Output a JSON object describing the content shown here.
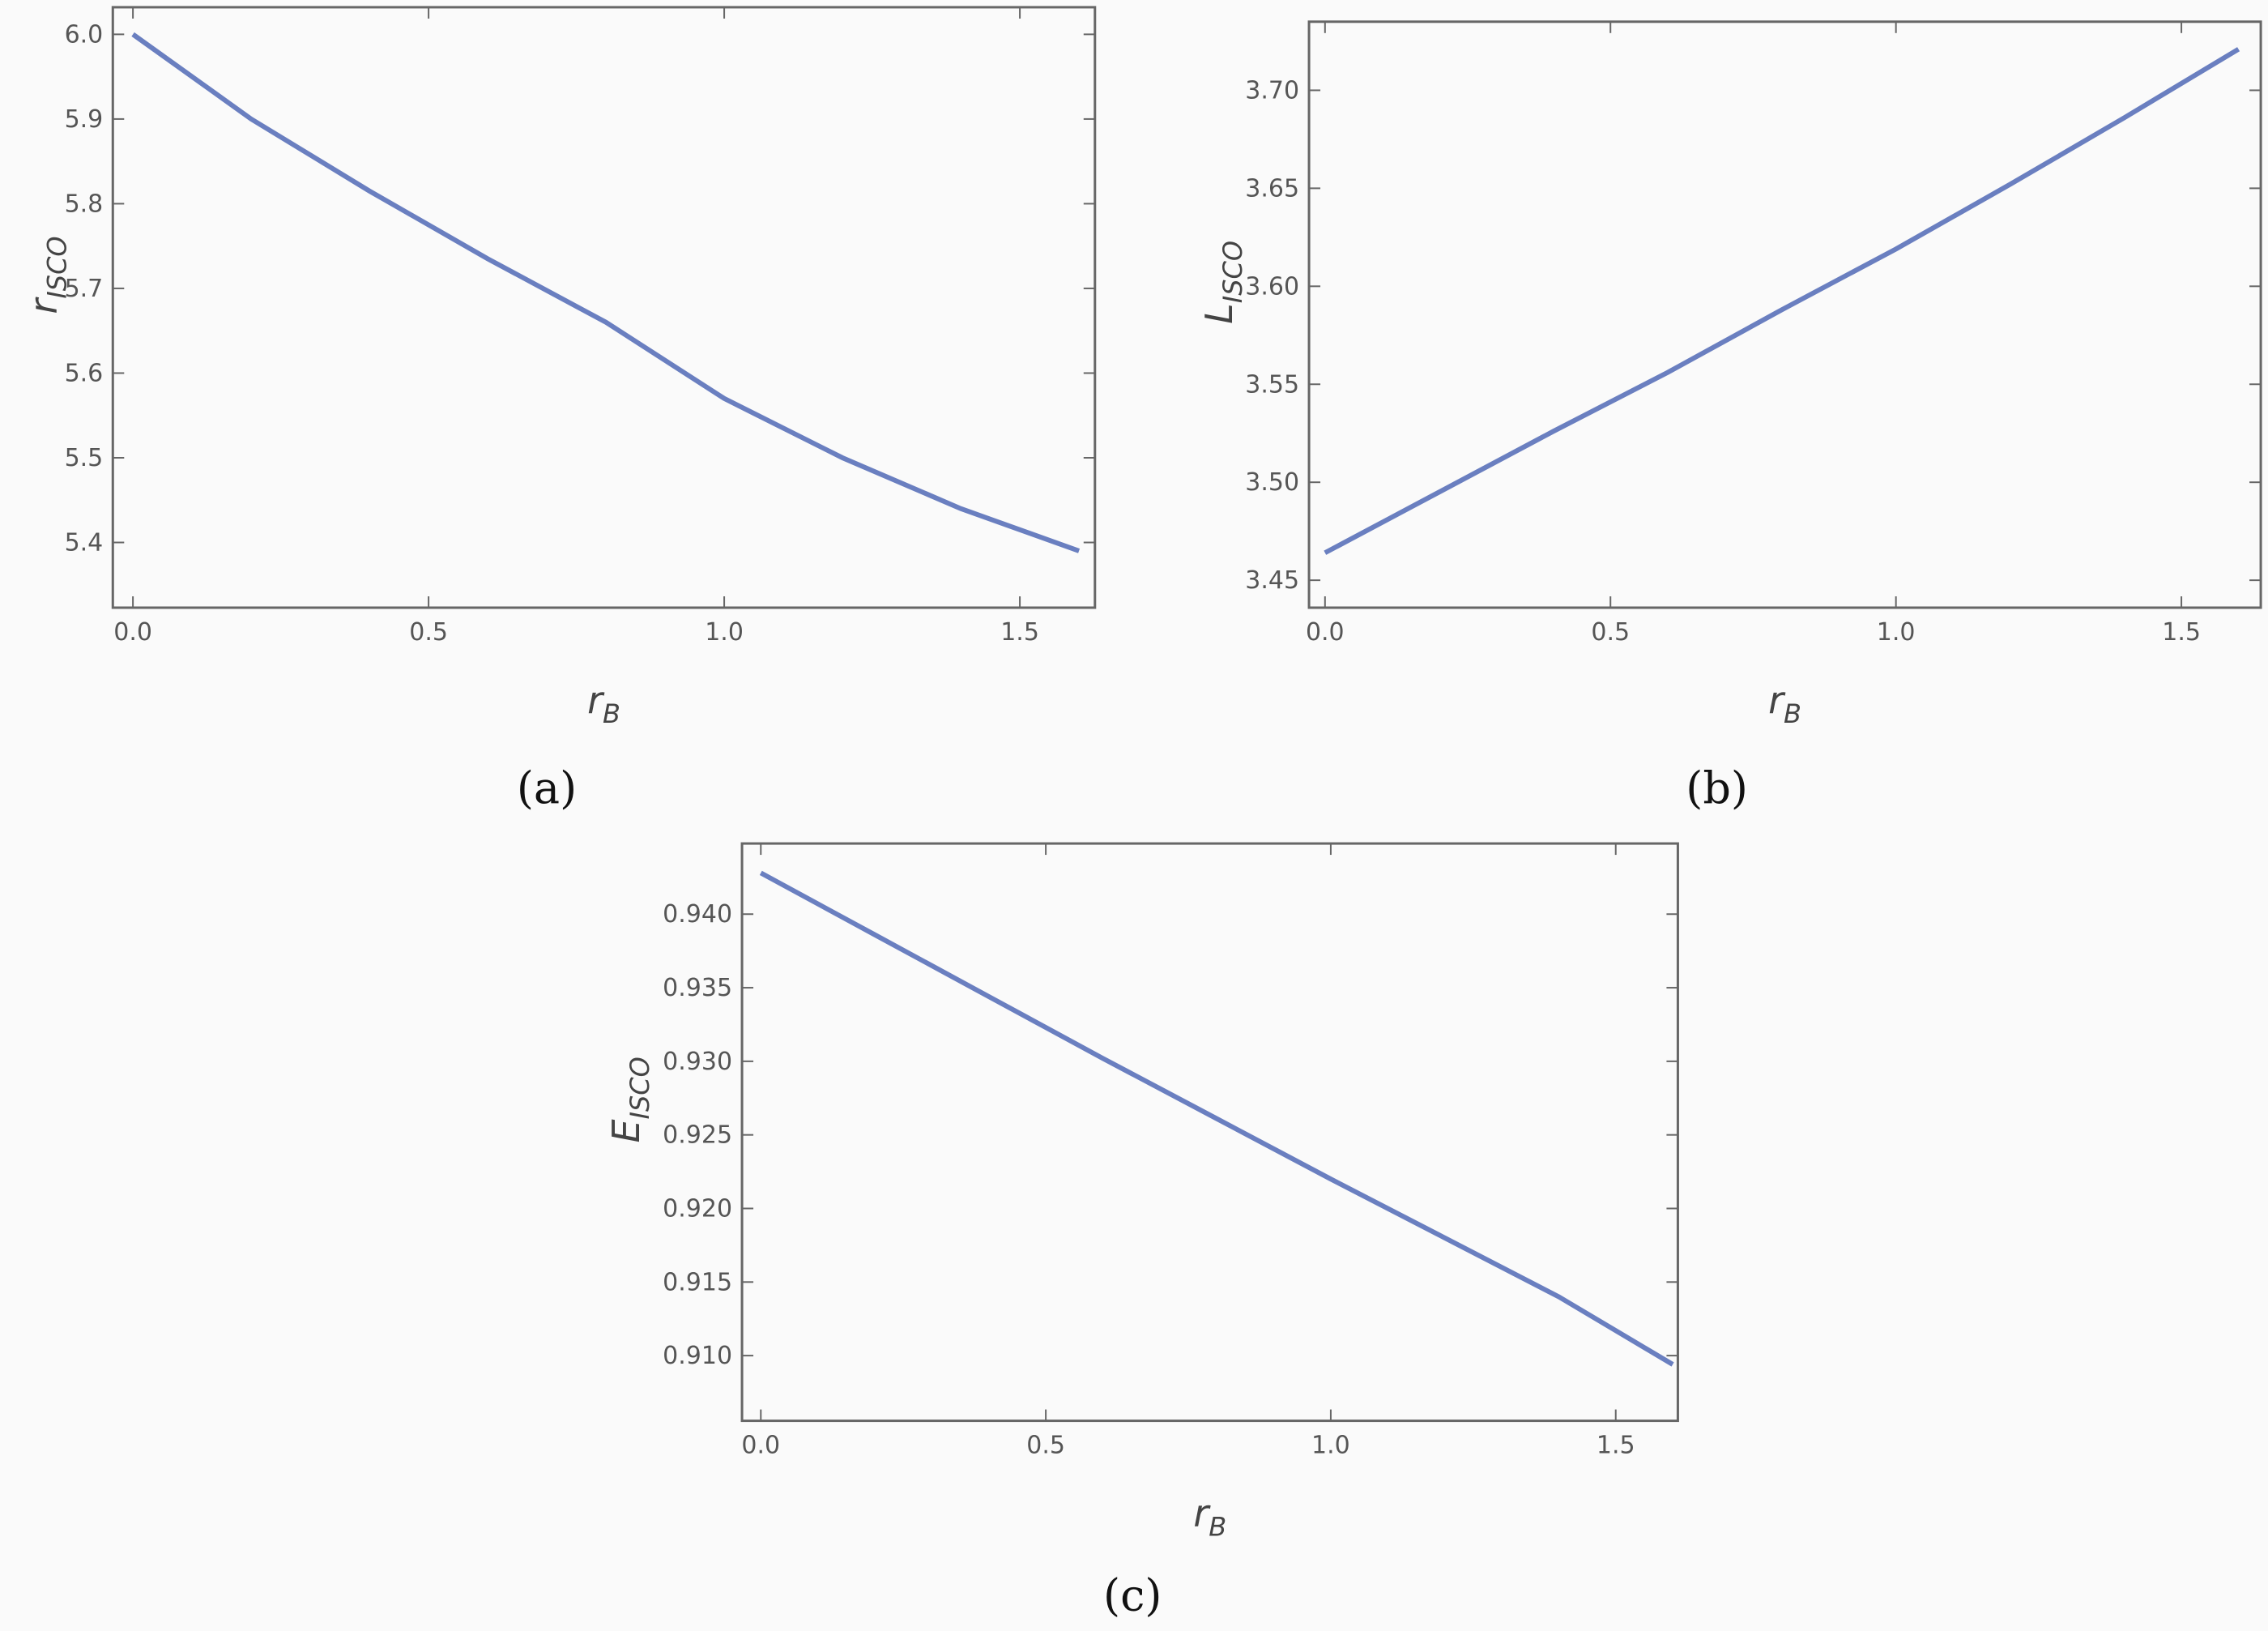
{
  "chart_data": [
    {
      "type": "line",
      "xlabel": "r",
      "xlabel_sub": "B",
      "ylabel": "r",
      "ylabel_sub": "ISCO",
      "caption": "(a)",
      "x": [
        0,
        0.2,
        0.4,
        0.6,
        0.8,
        1.0,
        1.2,
        1.4,
        1.6
      ],
      "series": [
        {
          "color": "#6a7fc0",
          "values": [
            6.0,
            5.9,
            5.815,
            5.735,
            5.66,
            5.57,
            5.5,
            5.44,
            5.39
          ]
        }
      ],
      "xlim": [
        -0.034,
        1.627
      ],
      "ylim": [
        5.323,
        6.032
      ],
      "xticks": [
        {
          "value": 0,
          "label": "0.0"
        },
        0.5,
        {
          "value": 1,
          "label": "1.0"
        },
        1.5
      ],
      "yticks": [
        5.4,
        5.5,
        5.6,
        5.7,
        5.8,
        5.9,
        {
          "value": 6,
          "label": "6.0"
        }
      ]
    },
    {
      "type": "line",
      "xlabel": "r",
      "xlabel_sub": "B",
      "ylabel": "L",
      "ylabel_sub": "ISCO",
      "caption": "(b)",
      "x": [
        0,
        0.2,
        0.4,
        0.6,
        0.8,
        1.0,
        1.2,
        1.4,
        1.6
      ],
      "series": [
        {
          "color": "#6a7fc0",
          "values": [
            3.464,
            3.495,
            3.526,
            3.556,
            3.588,
            3.619,
            3.652,
            3.686,
            3.721
          ]
        }
      ],
      "xlim": [
        -0.028,
        1.639
      ],
      "ylim": [
        3.436,
        3.735
      ],
      "xticks": [
        {
          "value": 0,
          "label": "0.0"
        },
        0.5,
        {
          "value": 1,
          "label": "1.0"
        },
        1.5
      ],
      "yticks": [
        3.45,
        {
          "value": 3.5,
          "label": "3.50"
        },
        3.55,
        {
          "value": 3.6,
          "label": "3.60"
        },
        3.65,
        {
          "value": 3.7,
          "label": "3.70"
        }
      ]
    },
    {
      "type": "line",
      "xlabel": "r",
      "xlabel_sub": "B",
      "ylabel": "E",
      "ylabel_sub": "ISCO",
      "caption": "(c)",
      "x": [
        0,
        0.2,
        0.4,
        0.6,
        0.8,
        1.0,
        1.2,
        1.4,
        1.6
      ],
      "series": [
        {
          "color": "#6a7fc0",
          "values": [
            0.9428,
            0.9386,
            0.9344,
            0.9302,
            0.9261,
            0.922,
            0.918,
            0.914,
            0.9094
          ]
        }
      ],
      "xlim": [
        -0.033,
        1.609
      ],
      "ylim": [
        0.90557,
        0.9448
      ],
      "xticks": [
        {
          "value": 0,
          "label": "0.0"
        },
        0.5,
        {
          "value": 1,
          "label": "1.0"
        },
        1.5
      ],
      "yticks": [
        {
          "value": 0.91,
          "label": "0.910"
        },
        0.915,
        {
          "value": 0.92,
          "label": "0.920"
        },
        0.925,
        {
          "value": 0.93,
          "label": "0.930"
        },
        0.935,
        {
          "value": 0.94,
          "label": "0.940"
        }
      ]
    }
  ]
}
